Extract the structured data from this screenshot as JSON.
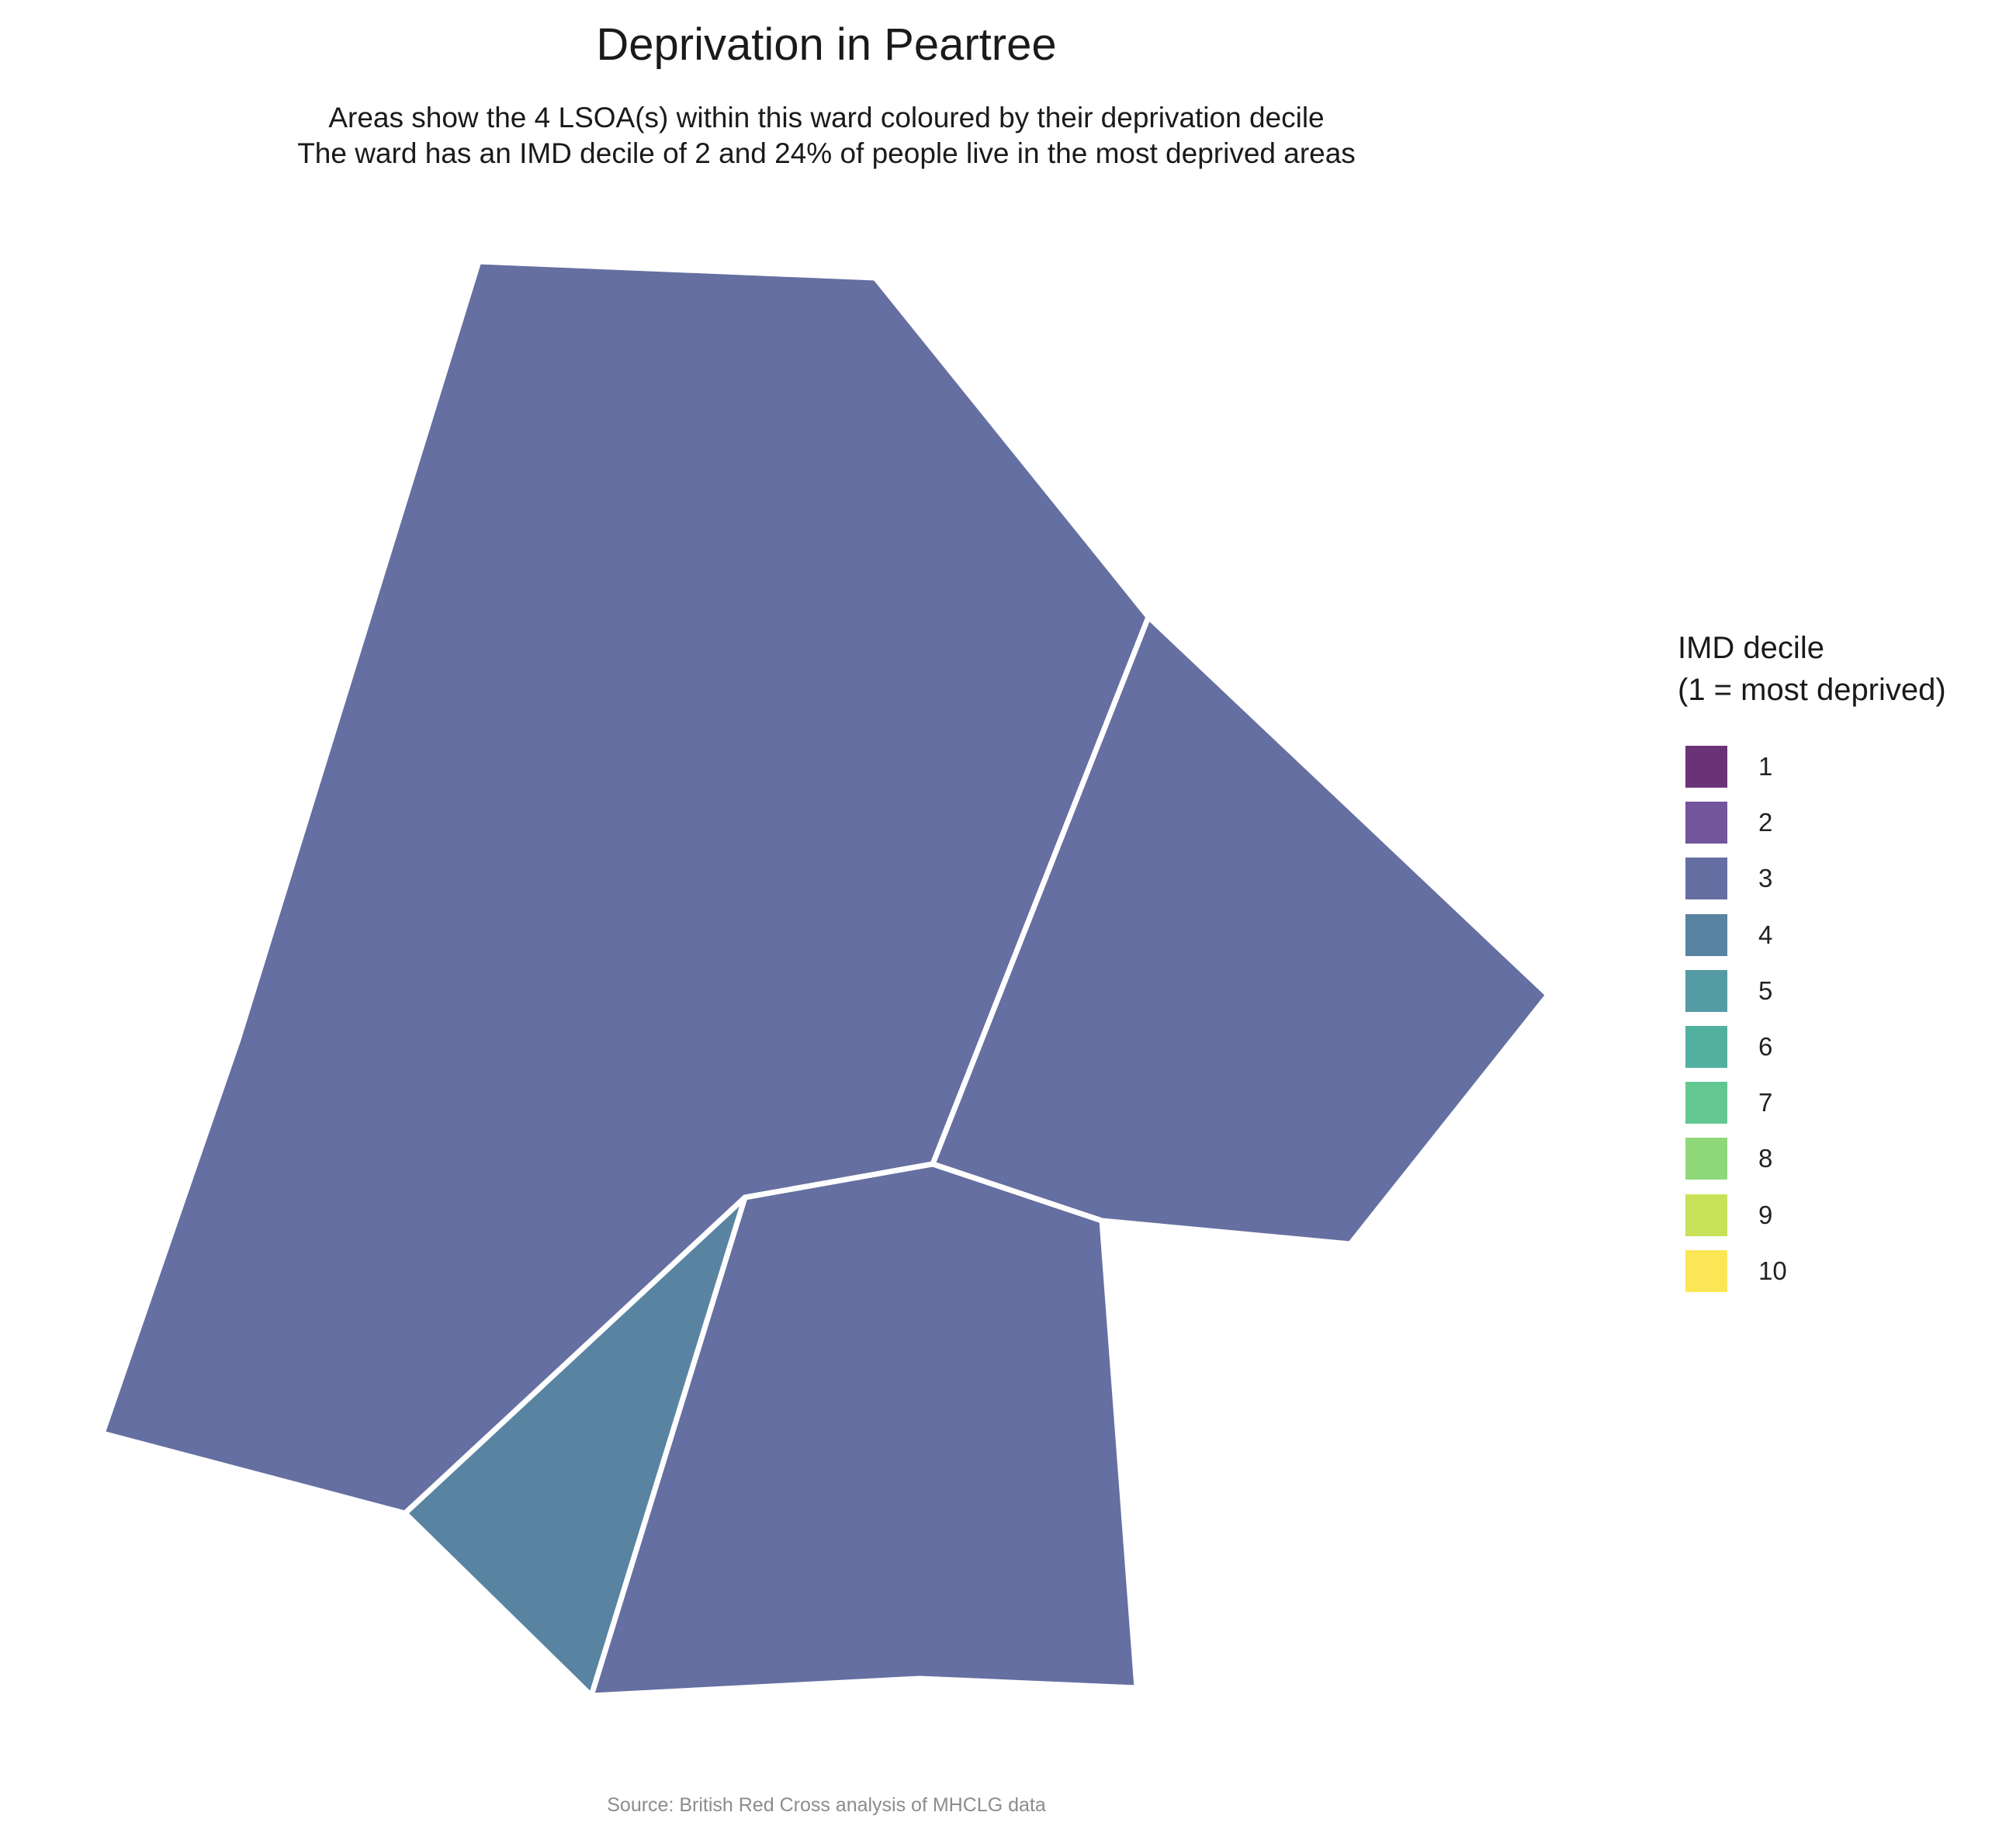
{
  "header": {
    "title": "Deprivation in Peartree",
    "subtitle_line1": "Areas show the 4 LSOA(s) within this ward coloured by their deprivation decile",
    "subtitle_line2": "The ward has an IMD decile of 2 and 24% of people live in the most deprived areas"
  },
  "legend": {
    "title_line1": "IMD decile",
    "title_line2": "(1 = most deprived)",
    "items": [
      {
        "label": "1",
        "color": "#6a3378"
      },
      {
        "label": "2",
        "color": "#72559a"
      },
      {
        "label": "3",
        "color": "#656fa1"
      },
      {
        "label": "4",
        "color": "#5884a2"
      },
      {
        "label": "5",
        "color": "#559ba4"
      },
      {
        "label": "6",
        "color": "#52b09f"
      },
      {
        "label": "7",
        "color": "#63c792"
      },
      {
        "label": "8",
        "color": "#8fd87a"
      },
      {
        "label": "9",
        "color": "#c7e158"
      },
      {
        "label": "10",
        "color": "#fbe756"
      }
    ]
  },
  "map": {
    "ward": "Peartree",
    "lsoa_count": 4,
    "areas": [
      {
        "name": "north-west-lsoa",
        "imd_decile": 3,
        "color": "#656fa1"
      },
      {
        "name": "east-lsoa",
        "imd_decile": 3,
        "color": "#656fa1"
      },
      {
        "name": "south-lsoa",
        "imd_decile": 3,
        "color": "#656fa1"
      },
      {
        "name": "south-west-lsoa",
        "imd_decile": 4,
        "color": "#5884a2"
      }
    ]
  },
  "footer": {
    "source": "Source: British Red Cross analysis of MHCLG data"
  }
}
